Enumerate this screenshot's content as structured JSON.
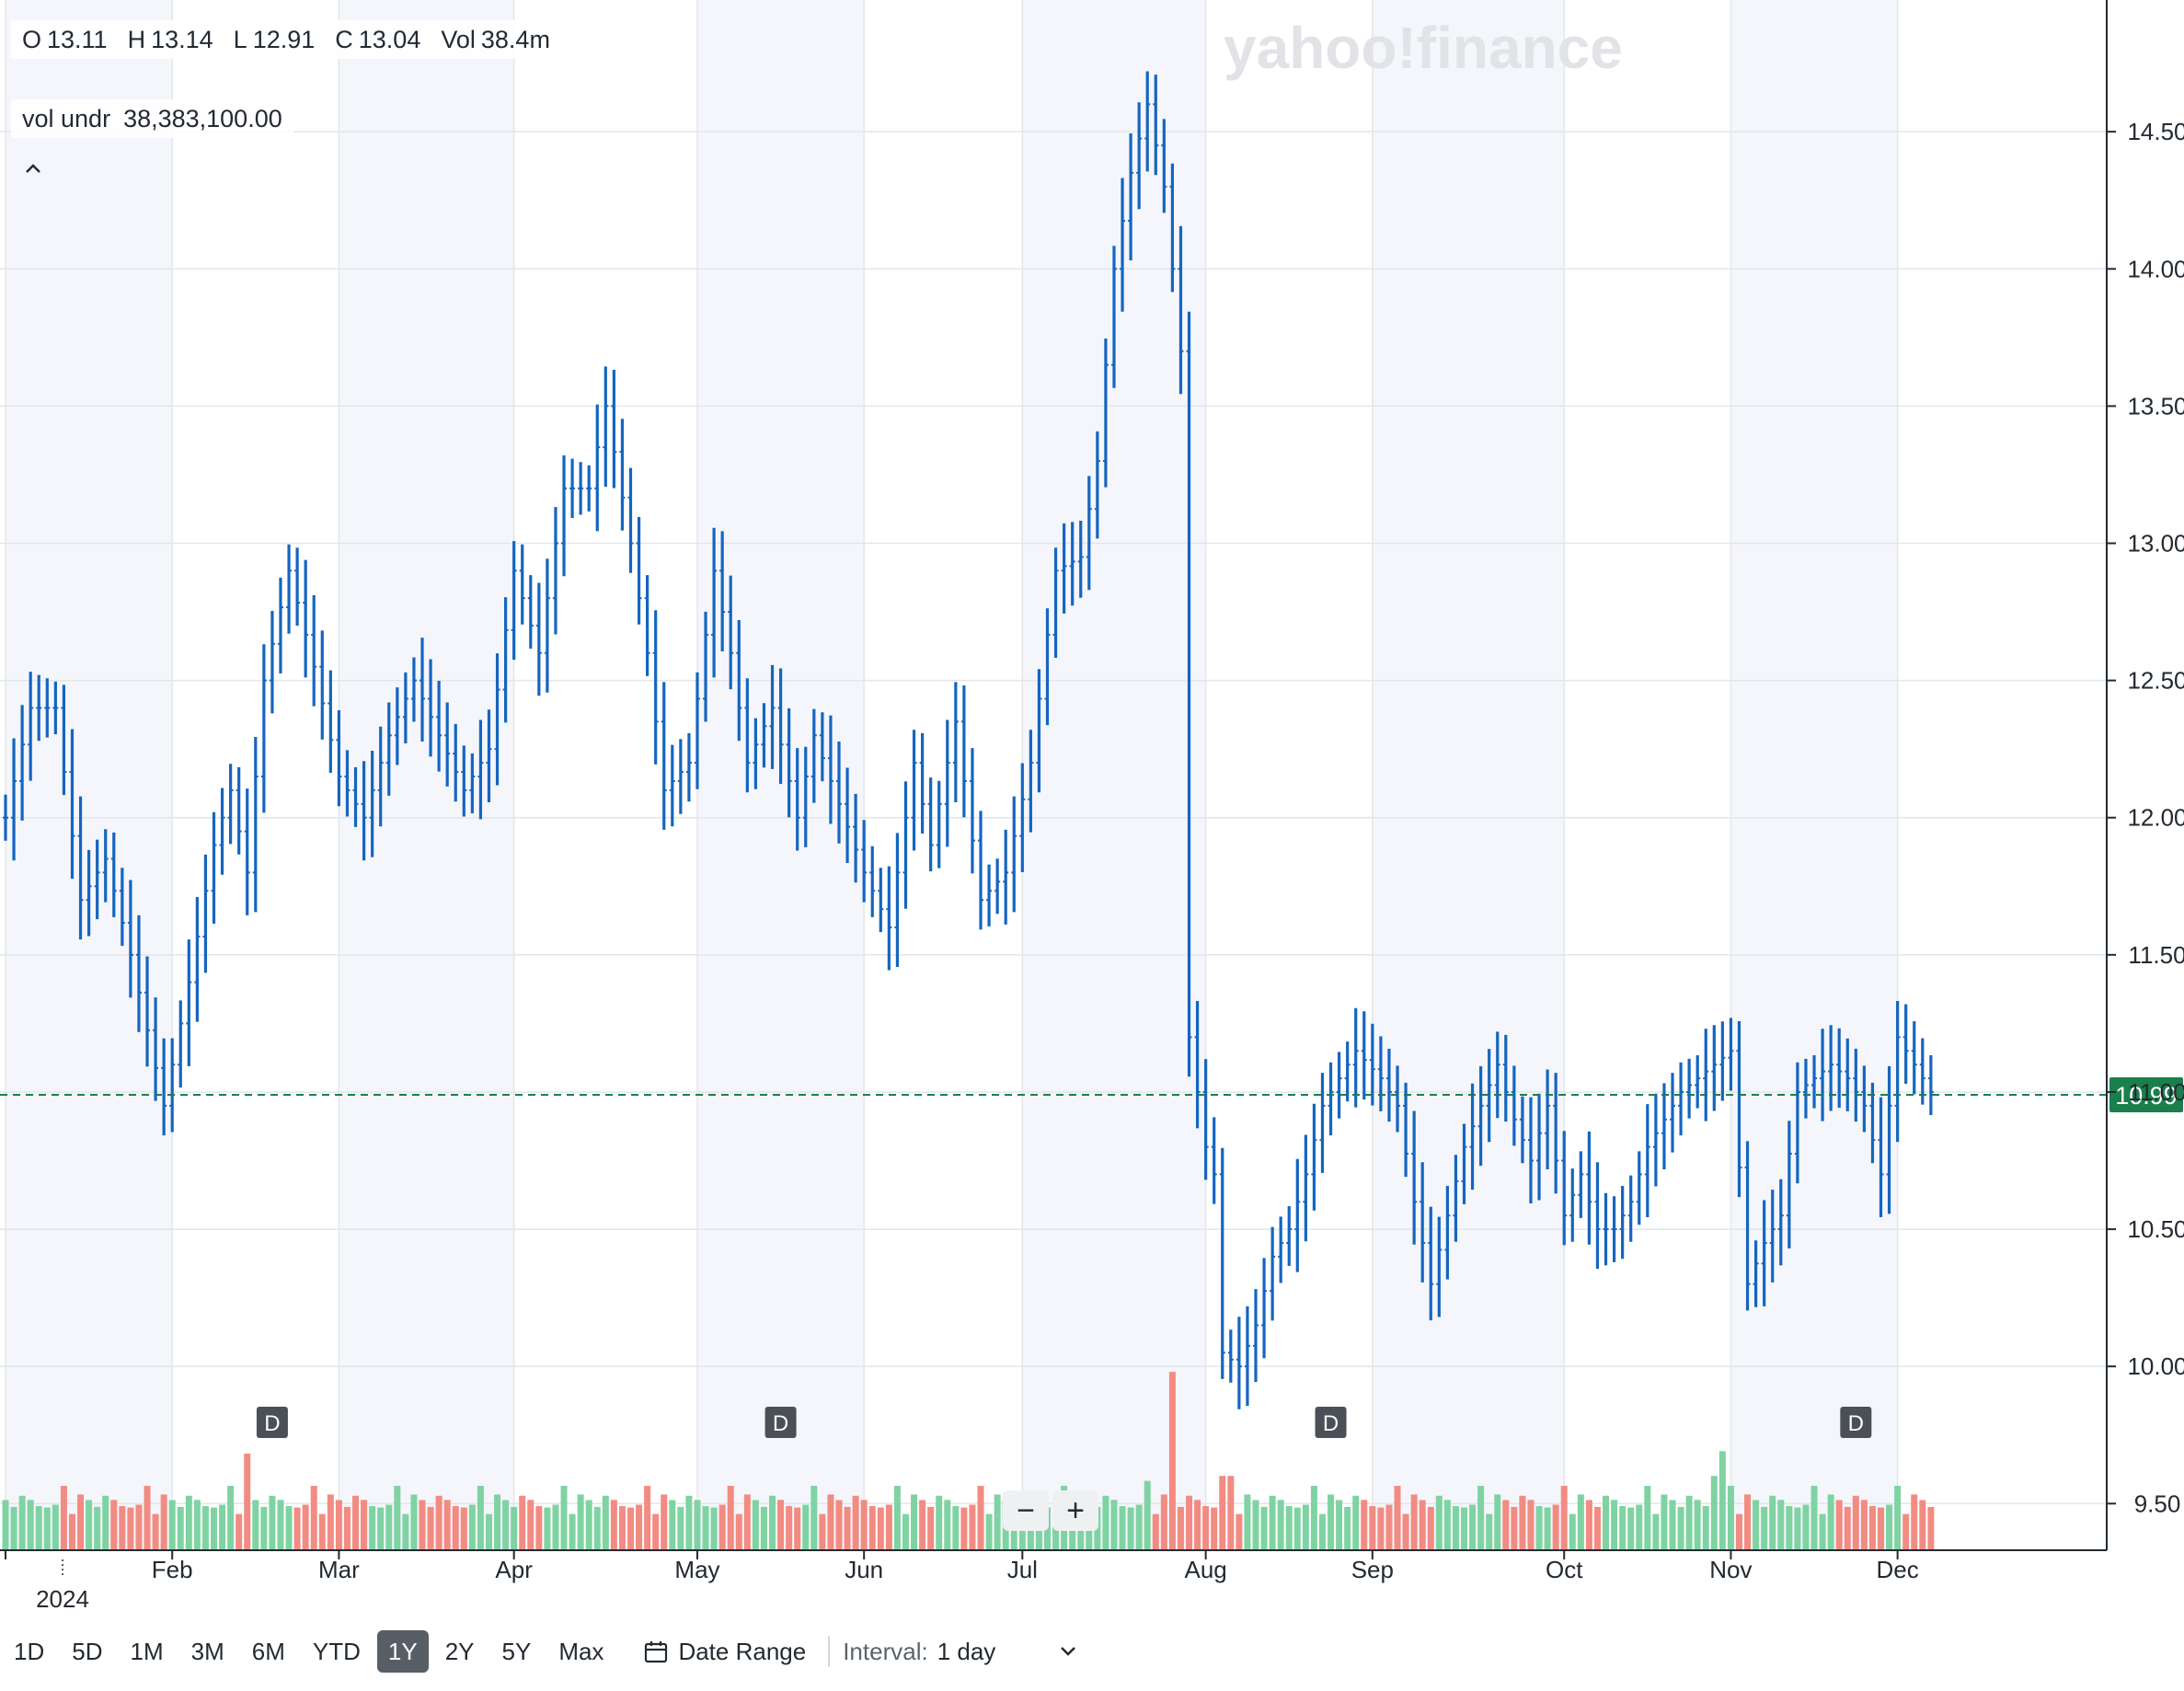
{
  "ohlc": {
    "open_label": "O",
    "open": "13.11",
    "high_label": "H",
    "high": "13.14",
    "low_label": "L",
    "low": "12.91",
    "close_label": "C",
    "close": "13.04",
    "vol_label": "Vol",
    "vol": "38.4m"
  },
  "vol_undr": {
    "label": "vol undr",
    "value": "38,383,100.00"
  },
  "watermark": "yahoo!finance",
  "current_price": "10.99",
  "dividend_marker": "D",
  "zoom": {
    "minus": "−",
    "plus": "+"
  },
  "toolbar": {
    "ranges": [
      "1D",
      "5D",
      "1M",
      "3M",
      "6M",
      "YTD",
      "1Y",
      "2Y",
      "5Y",
      "Max"
    ],
    "active_range": "1Y",
    "date_range_label": "Date Range",
    "interval_label": "Interval:",
    "interval_value": "1 day"
  },
  "colors": {
    "price_bar": "#1565c0",
    "volume_up": "#7fd3a2",
    "volume_down": "#f28b82",
    "current_price_badge": "#1a7f4b",
    "grid": "#e3e6e9",
    "shade": "#f4f6fb"
  },
  "chart_data": {
    "type": "ohlc",
    "title": "",
    "ylim": [
      9.33,
      14.98
    ],
    "y_ticks": [
      "14.50",
      "14.00",
      "13.50",
      "13.00",
      "12.50",
      "12.00",
      "11.50",
      "11.00",
      "10.50",
      "10.00",
      "9.50"
    ],
    "x_year_label": "2024",
    "x_months": [
      "Feb",
      "Mar",
      "Apr",
      "May",
      "Jun",
      "Jul",
      "Aug",
      "Sep",
      "Oct",
      "Nov",
      "Dec"
    ],
    "month_days": [
      0,
      20,
      40,
      61,
      83,
      103,
      122,
      144,
      164,
      187,
      207,
      227
    ],
    "dividend_days": [
      32,
      93,
      159,
      222
    ],
    "close_anchors": [
      [
        0,
        12.0
      ],
      [
        3,
        12.4
      ],
      [
        6,
        12.4
      ],
      [
        9,
        11.7
      ],
      [
        12,
        11.85
      ],
      [
        15,
        11.5
      ],
      [
        19,
        10.95
      ],
      [
        22,
        11.4
      ],
      [
        25,
        11.9
      ],
      [
        27,
        12.1
      ],
      [
        29,
        11.8
      ],
      [
        31,
        12.5
      ],
      [
        34,
        12.9
      ],
      [
        37,
        12.55
      ],
      [
        40,
        12.15
      ],
      [
        43,
        12.0
      ],
      [
        46,
        12.3
      ],
      [
        49,
        12.5
      ],
      [
        52,
        12.3
      ],
      [
        55,
        12.1
      ],
      [
        58,
        12.25
      ],
      [
        61,
        12.9
      ],
      [
        64,
        12.6
      ],
      [
        67,
        13.2
      ],
      [
        70,
        13.2
      ],
      [
        72,
        13.5
      ],
      [
        75,
        13.0
      ],
      [
        77,
        12.6
      ],
      [
        79,
        12.1
      ],
      [
        82,
        12.2
      ],
      [
        85,
        12.9
      ],
      [
        87,
        12.6
      ],
      [
        89,
        12.2
      ],
      [
        92,
        12.4
      ],
      [
        95,
        12.0
      ],
      [
        97,
        12.3
      ],
      [
        100,
        12.05
      ],
      [
        103,
        11.8
      ],
      [
        106,
        11.6
      ],
      [
        109,
        12.2
      ],
      [
        111,
        11.9
      ],
      [
        114,
        12.35
      ],
      [
        117,
        11.7
      ],
      [
        120,
        11.8
      ],
      [
        123,
        12.2
      ],
      [
        126,
        12.9
      ],
      [
        129,
        12.95
      ],
      [
        131,
        13.3
      ],
      [
        133,
        14.0
      ],
      [
        135,
        14.35
      ],
      [
        137,
        14.6
      ],
      [
        139,
        14.3
      ],
      [
        141,
        13.7
      ],
      [
        142,
        11.2
      ],
      [
        144,
        10.8
      ],
      [
        145,
        10.7
      ],
      [
        146,
        10.05
      ],
      [
        148,
        10.0
      ],
      [
        150,
        10.15
      ],
      [
        152,
        10.4
      ],
      [
        154,
        10.5
      ],
      [
        156,
        10.7
      ],
      [
        158,
        10.95
      ],
      [
        160,
        11.05
      ],
      [
        162,
        11.15
      ],
      [
        165,
        11.05
      ],
      [
        167,
        10.95
      ],
      [
        169,
        10.6
      ],
      [
        171,
        10.3
      ],
      [
        173,
        10.55
      ],
      [
        175,
        10.8
      ],
      [
        177,
        10.95
      ],
      [
        179,
        11.1
      ],
      [
        181,
        10.9
      ],
      [
        183,
        10.75
      ],
      [
        185,
        10.95
      ],
      [
        187,
        10.55
      ],
      [
        189,
        10.7
      ],
      [
        191,
        10.5
      ],
      [
        193,
        10.5
      ],
      [
        195,
        10.6
      ],
      [
        197,
        10.8
      ],
      [
        199,
        10.9
      ],
      [
        201,
        11.0
      ],
      [
        203,
        11.05
      ],
      [
        205,
        11.1
      ],
      [
        207,
        11.15
      ],
      [
        209,
        10.3
      ],
      [
        211,
        10.45
      ],
      [
        213,
        10.55
      ],
      [
        215,
        11.0
      ],
      [
        217,
        11.05
      ],
      [
        219,
        11.1
      ],
      [
        221,
        11.05
      ],
      [
        223,
        10.95
      ],
      [
        225,
        10.7
      ],
      [
        227,
        11.2
      ],
      [
        229,
        11.1
      ],
      [
        231,
        11.0
      ]
    ],
    "volume_pattern": [
      1.35,
      1.0,
      1.1,
      1.25,
      0.95,
      1.15,
      1.05,
      1.3,
      0.9,
      1.2
    ],
    "volume_spikes": [
      [
        29,
        1.95
      ],
      [
        137,
        1.4
      ],
      [
        140,
        3.6
      ],
      [
        146,
        1.5
      ],
      [
        147,
        1.5
      ],
      [
        205,
        1.5
      ],
      [
        206,
        2.0
      ]
    ],
    "volume_ylim": [
      0,
      3.9
    ]
  }
}
